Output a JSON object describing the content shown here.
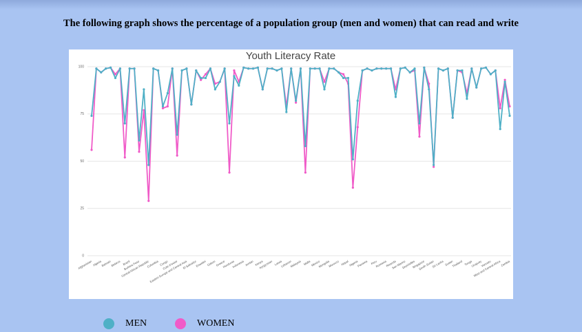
{
  "heading": "The following graph shows the percentage of a population group (men and women) that can read and write",
  "chart_data": {
    "type": "line",
    "title": "Youth Literacy Rate",
    "categories": [
      "Afghanistan",
      null,
      "Algeria",
      null,
      "Bahrain",
      null,
      "Belarus",
      null,
      "Brazil",
      null,
      "Burkina Faso",
      null,
      "Central African Republic",
      null,
      "Colombia",
      null,
      "Congo",
      null,
      "Cote d'Ivoire",
      null,
      "Eastern Europe and Central Asia",
      null,
      "El Salvador",
      null,
      "Eswatini",
      null,
      "Gabon",
      null,
      "Greece",
      null,
      "Honduras",
      null,
      "Indonesia",
      null,
      "Jordan",
      null,
      "Kenya",
      null,
      "Kyrgyzstan",
      null,
      "Latvia",
      null,
      "Lebanon",
      null,
      "Malaysia",
      null,
      "Malta",
      null,
      "Mexico",
      null,
      "Mongolia",
      null,
      "Morocco",
      null,
      "Nepal",
      null,
      "Nigeria",
      null,
      "Panama",
      null,
      "Peru",
      null,
      "Romania",
      null,
      "Rwanda",
      null,
      "San Marino",
      null,
      "Seychelles",
      null,
      "Singapore",
      null,
      "South Sudan",
      null,
      "Sri Lanka",
      null,
      "Sudan",
      null,
      "Thailand",
      null,
      "Tonga",
      null,
      "Uruguay",
      null,
      "Vanuatu",
      null,
      "West and Central Africa",
      null,
      "Zambia"
    ],
    "series": [
      {
        "name": "MEN",
        "color": "#4fb0c6",
        "values": [
          74,
          99,
          97,
          99,
          99.5,
          94,
          99,
          70,
          99,
          99,
          61,
          88,
          48,
          99,
          98,
          79,
          86,
          99,
          64,
          98,
          99,
          80,
          98,
          94,
          94,
          99,
          88,
          92,
          99,
          70,
          95,
          90,
          99.5,
          99,
          99,
          99.5,
          88,
          99,
          99,
          98,
          99,
          76,
          99,
          82,
          99,
          58,
          99,
          99,
          99,
          88,
          99,
          99,
          97,
          94,
          94,
          51,
          82,
          98,
          99,
          98,
          99,
          99,
          99,
          99,
          84,
          99,
          99.5,
          97,
          99,
          70,
          99.5,
          88,
          48,
          99,
          98,
          99,
          73,
          98,
          98,
          83,
          99,
          89,
          99,
          99.5,
          96,
          98,
          67,
          92,
          74
        ]
      },
      {
        "name": "WOMEN",
        "color": "#f05bc8",
        "values": [
          56,
          99,
          97,
          99,
          99.5,
          96,
          99,
          52,
          99,
          99,
          55,
          77,
          29,
          99,
          98,
          78,
          79,
          99,
          53,
          98,
          99,
          80,
          98,
          93,
          96,
          99,
          91,
          92,
          99,
          44,
          98,
          92,
          99.5,
          99,
          99,
          99.5,
          88,
          99,
          99,
          98,
          99,
          79,
          99,
          81,
          99,
          44,
          99,
          99,
          99,
          92,
          99,
          99,
          97,
          96,
          91,
          36,
          68,
          98,
          99,
          98,
          99,
          99,
          99,
          99,
          88,
          99,
          99.5,
          97,
          98,
          63,
          99.5,
          91,
          47,
          99,
          98,
          99,
          73,
          98,
          97,
          86,
          99,
          89,
          99,
          99.5,
          96,
          98,
          78,
          93,
          79
        ]
      }
    ],
    "ylim": [
      0,
      100
    ],
    "yticks": [
      0,
      25,
      50,
      75,
      100
    ],
    "grid": true
  }
}
